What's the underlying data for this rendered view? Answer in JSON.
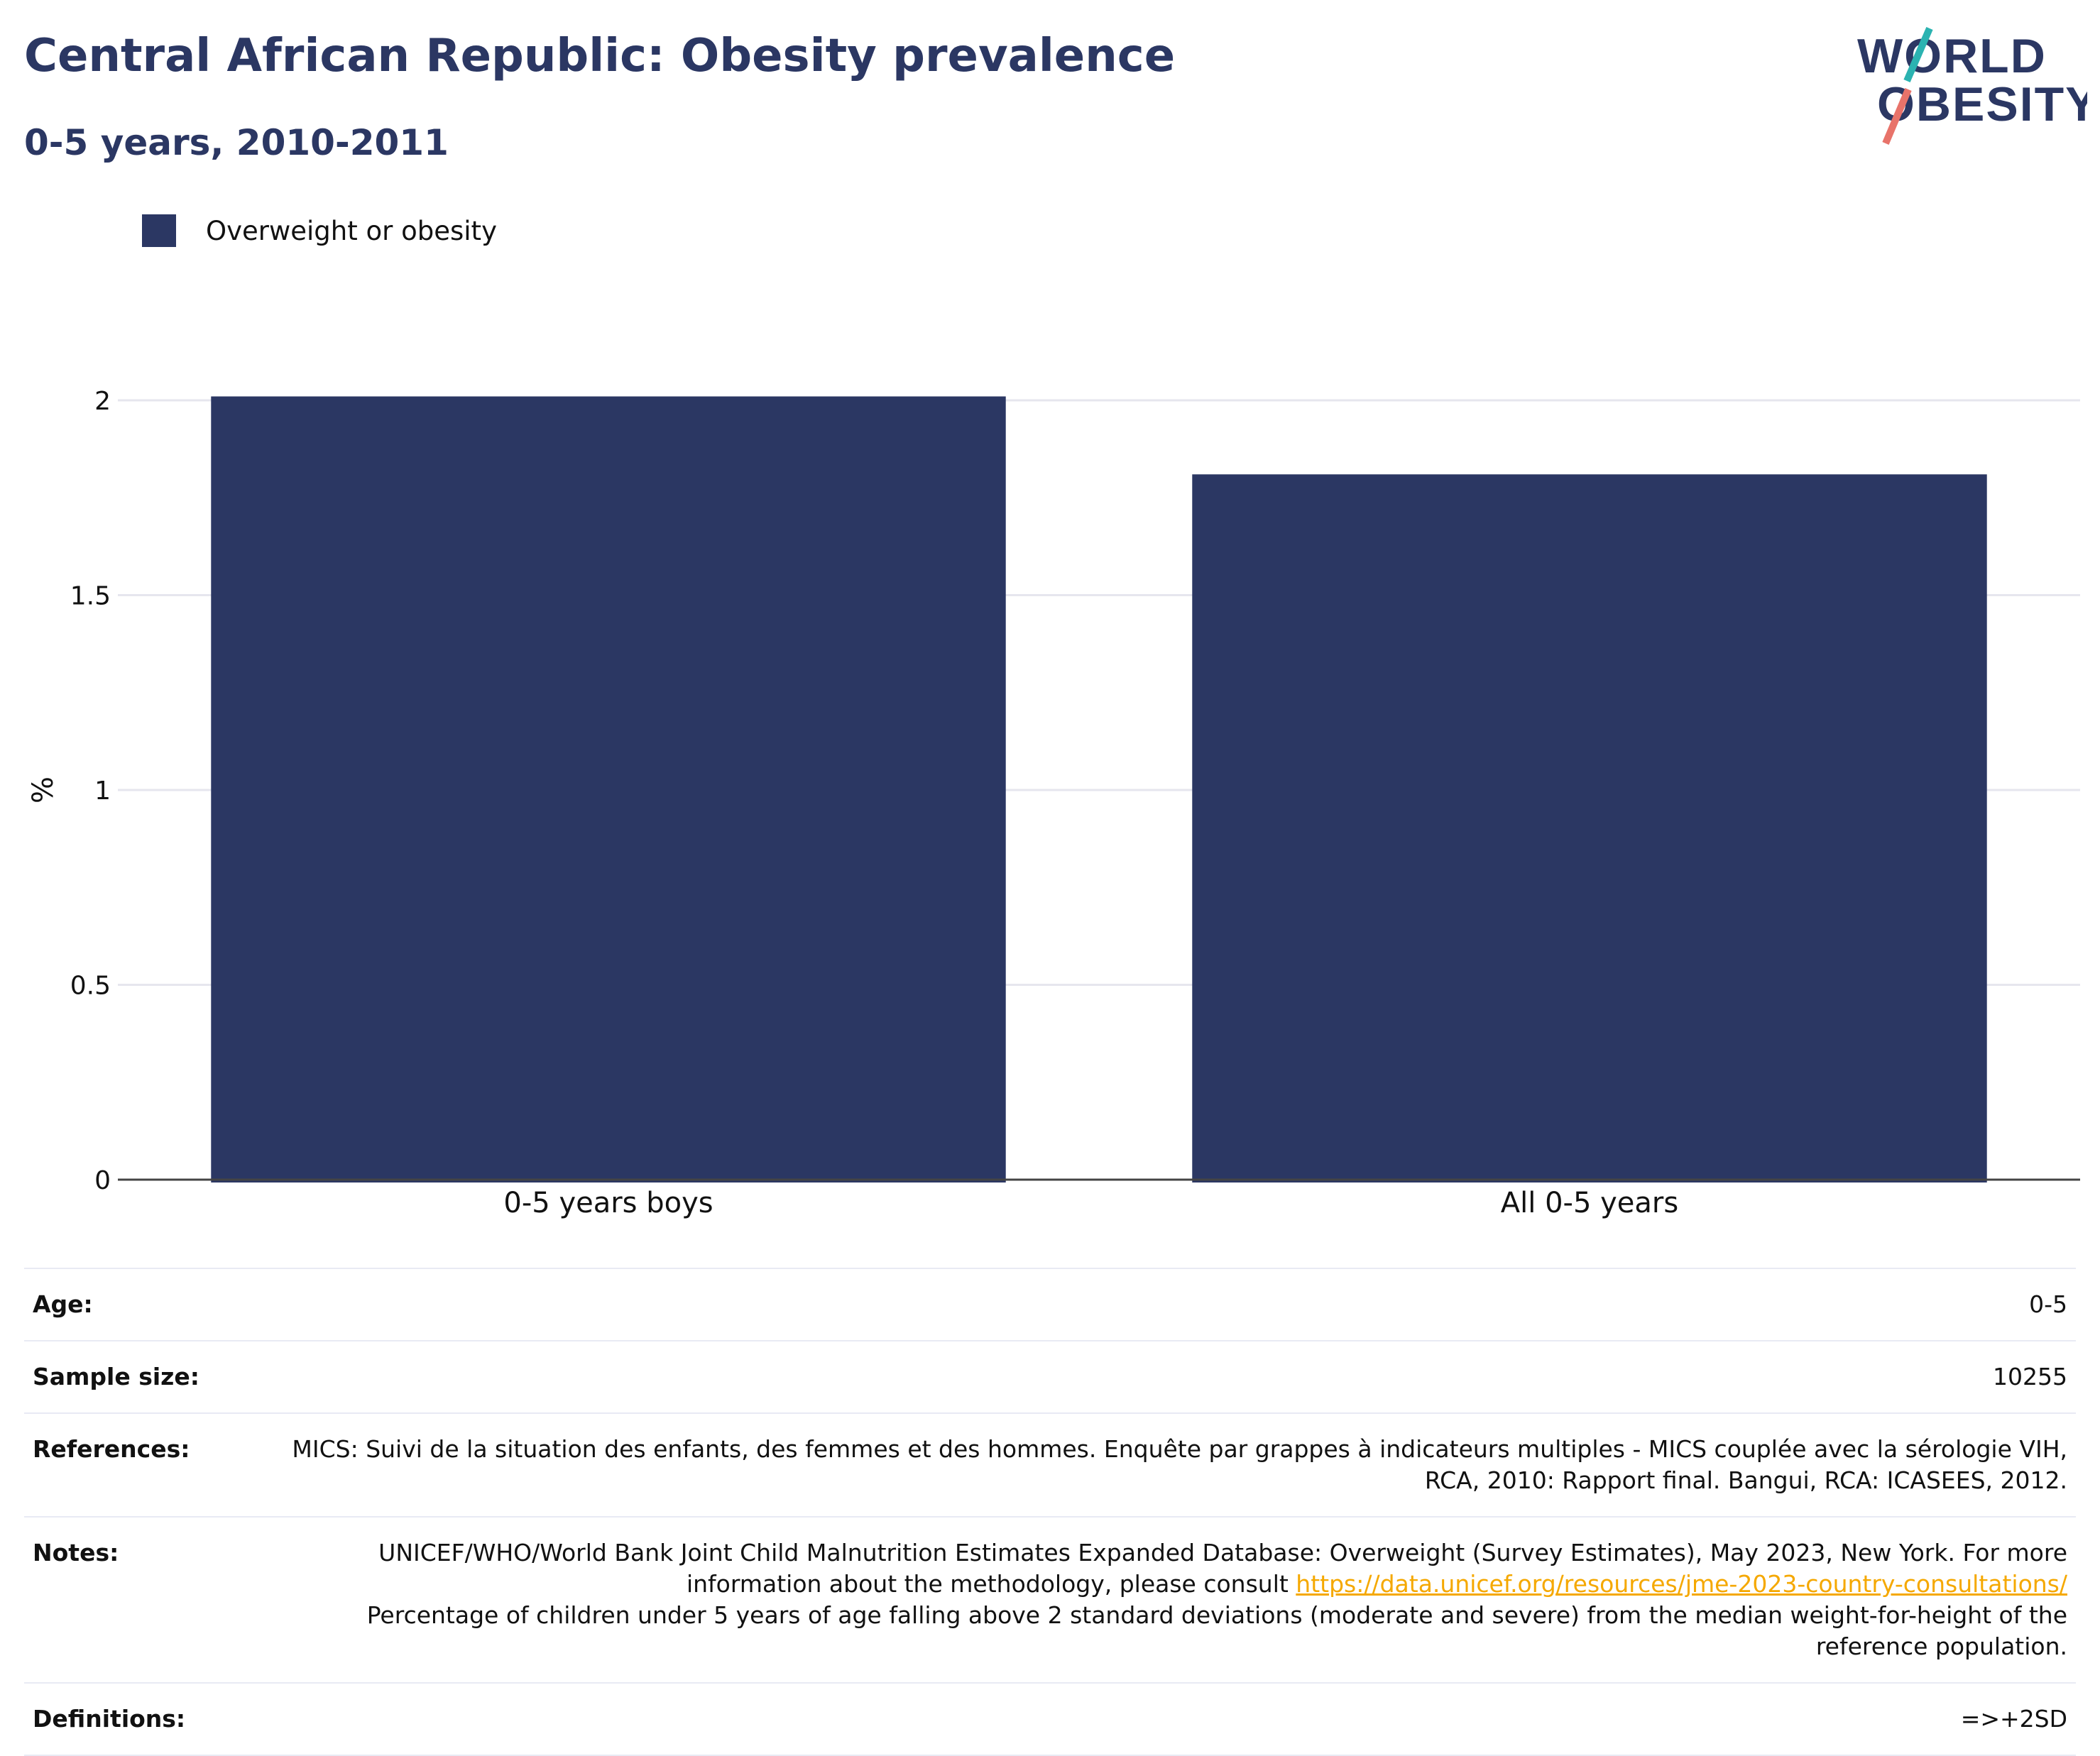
{
  "header": {
    "title": "Central African Republic: Obesity prevalence",
    "subtitle": "0-5 years, 2010-2011"
  },
  "logo": {
    "line1": "WORLD",
    "line2": "OBESITY",
    "text_color": "#2b3763",
    "accent_teal": "#2bb3b1",
    "accent_coral": "#e8736a"
  },
  "legend": {
    "label": "Overweight or obesity",
    "color": "#2b3763"
  },
  "chart_data": {
    "type": "bar",
    "categories": [
      "0-5 years boys",
      "All 0-5 years"
    ],
    "series": [
      {
        "name": "Overweight or obesity",
        "values": [
          2.01,
          1.81
        ],
        "color": "#2b3763"
      }
    ],
    "ylabel": "%",
    "ylim": [
      0,
      2
    ],
    "yticks": [
      0,
      0.5,
      1,
      1.5,
      2
    ],
    "ytick_labels": [
      "0",
      "0.5",
      "1",
      "1.5",
      "2"
    ],
    "grid": true,
    "legend_position": "top-left"
  },
  "info": {
    "age": {
      "label": "Age:",
      "value": "0-5"
    },
    "sample_size": {
      "label": "Sample size:",
      "value": "10255"
    },
    "references": {
      "label": "References:",
      "value": "MICS: Suivi de la situation des enfants, des femmes et des hommes. Enquête par grappes à indicateurs multiples - MICS couplée avec la sérologie VIH, RCA, 2010: Rapport final. Bangui, RCA: ICASEES, 2012."
    },
    "notes": {
      "label": "Notes:",
      "text_before": "UNICEF/WHO/World Bank Joint Child Malnutrition Estimates Expanded Database: Overweight (Survey Estimates), May 2023, New York. For more information about the methodology, please consult ",
      "link": "https://data.unicef.org/resources/jme-2023-country-consultations/",
      "text_after": "Percentage of children under 5 years of age falling above 2 standard deviations (moderate and severe) from the median weight-for-height of the reference population."
    },
    "definitions": {
      "label": "Definitions:",
      "value": "=>+2SD"
    }
  }
}
